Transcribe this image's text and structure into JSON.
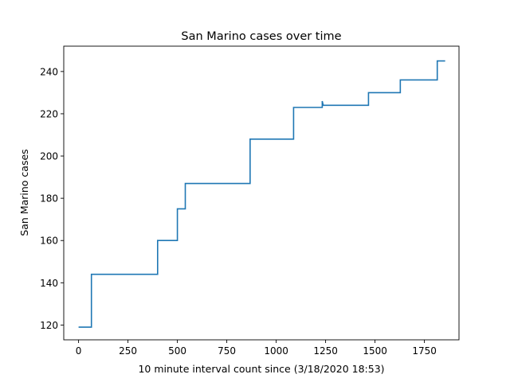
{
  "chart_data": {
    "type": "line",
    "title": "San Marino cases over time",
    "xlabel": "10 minute interval count since (3/18/2020 18:53)",
    "ylabel": "San Marino cases",
    "xlim": [
      -75,
      1925
    ],
    "ylim": [
      113,
      252
    ],
    "xticks": [
      "0",
      "250",
      "500",
      "750",
      "1000",
      "1250",
      "1500",
      "1750"
    ],
    "yticks": [
      "120",
      "140",
      "160",
      "180",
      "200",
      "220",
      "240"
    ],
    "grid": false,
    "line_color": "#1f77b4",
    "series": [
      {
        "x": [
          0,
          65,
          65,
          400,
          400,
          500,
          500,
          540,
          540,
          868,
          868,
          1088,
          1088,
          1233,
          1233,
          1238,
          1238,
          1467,
          1467,
          1628,
          1628,
          1815,
          1815,
          1855
        ],
        "y": [
          119,
          119,
          144,
          144,
          160,
          160,
          175,
          175,
          187,
          187,
          208,
          208,
          223,
          223,
          226,
          224,
          224,
          224,
          230,
          230,
          236,
          236,
          245,
          245
        ]
      }
    ]
  }
}
